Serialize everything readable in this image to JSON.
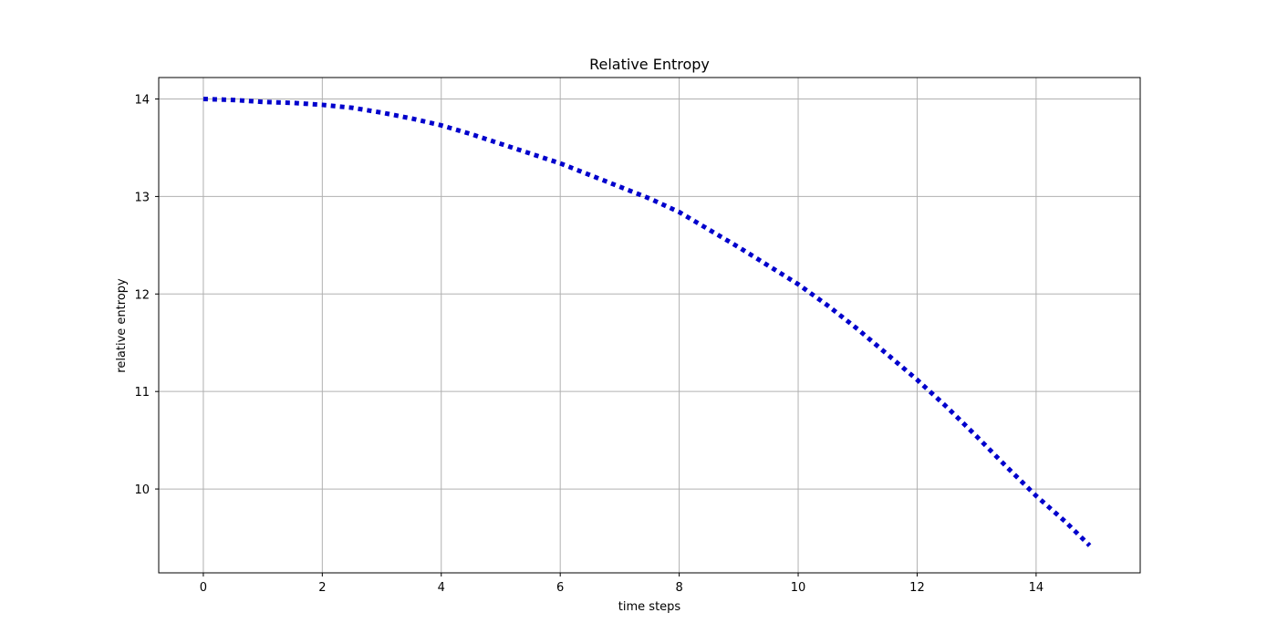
{
  "chart_data": {
    "type": "line",
    "title": "Relative Entropy",
    "xlabel": "time steps",
    "ylabel": "relative entropy",
    "xlim": [
      -0.75,
      15.75
    ],
    "ylim": [
      9.14,
      14.22
    ],
    "xticks": [
      0,
      2,
      4,
      6,
      8,
      10,
      12,
      14
    ],
    "yticks": [
      10,
      11,
      12,
      13,
      14
    ],
    "xtick_labels": [
      "0",
      "2",
      "4",
      "6",
      "8",
      "10",
      "12",
      "14"
    ],
    "ytick_labels": [
      "10",
      "11",
      "12",
      "13",
      "14"
    ],
    "grid": true,
    "line_style": "dotted",
    "series": [
      {
        "color": "#0000cc",
        "x": [
          0,
          0.5,
          1,
          1.5,
          2,
          2.5,
          3,
          3.5,
          4,
          4.5,
          5,
          5.5,
          6,
          6.5,
          7,
          7.5,
          8,
          8.5,
          9,
          9.5,
          10,
          10.5,
          11,
          11.5,
          12,
          12.5,
          13,
          13.5,
          14,
          14.5,
          14.9
        ],
        "y": [
          14.0,
          13.99,
          13.97,
          13.96,
          13.94,
          13.91,
          13.86,
          13.8,
          13.73,
          13.64,
          13.54,
          13.44,
          13.34,
          13.22,
          13.1,
          12.98,
          12.84,
          12.66,
          12.48,
          12.29,
          12.1,
          11.88,
          11.64,
          11.38,
          11.12,
          10.84,
          10.54,
          10.23,
          9.93,
          9.66,
          9.42
        ]
      }
    ]
  }
}
